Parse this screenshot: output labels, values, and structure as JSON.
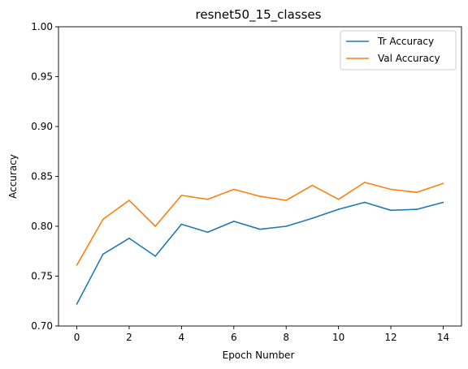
{
  "chart_data": {
    "type": "line",
    "title": "resnet50_15_classes",
    "xlabel": "Epoch Number",
    "ylabel": "Accuracy",
    "x": [
      0,
      1,
      2,
      3,
      4,
      5,
      6,
      7,
      8,
      9,
      10,
      11,
      12,
      13,
      14
    ],
    "xlim": [
      -0.7,
      14.7
    ],
    "ylim": [
      0.7,
      1.0
    ],
    "xticks": [
      "0",
      "2",
      "4",
      "6",
      "8",
      "10",
      "12",
      "14"
    ],
    "yticks": [
      "0.70",
      "0.75",
      "0.80",
      "0.85",
      "0.90",
      "0.95",
      "1.00"
    ],
    "grid": false,
    "legend_position": "top-right",
    "series": [
      {
        "name": "Tr Accuracy",
        "color": "#1f77b4",
        "values": [
          0.722,
          0.772,
          0.788,
          0.77,
          0.802,
          0.794,
          0.805,
          0.797,
          0.8,
          0.808,
          0.817,
          0.824,
          0.816,
          0.817,
          0.824
        ]
      },
      {
        "name": "Val Accuracy",
        "color": "#ff7f0e",
        "values": [
          0.761,
          0.807,
          0.826,
          0.8,
          0.831,
          0.827,
          0.837,
          0.83,
          0.826,
          0.841,
          0.827,
          0.844,
          0.837,
          0.834,
          0.843
        ]
      }
    ]
  }
}
